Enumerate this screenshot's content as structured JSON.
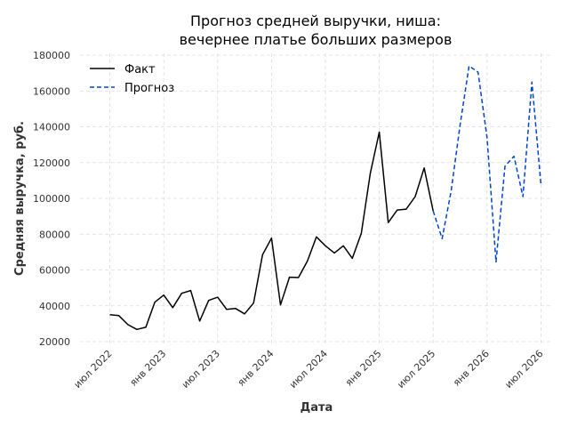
{
  "chart_data": {
    "type": "line",
    "title_line1": "Прогноз средней выручки, ниша:",
    "title_line2": "вечернее платье больших размеров",
    "xlabel": "Дата",
    "ylabel": "Средняя выручка, руб.",
    "ylim": [
      20000,
      180000
    ],
    "yticks": [
      20000,
      40000,
      60000,
      80000,
      100000,
      120000,
      140000,
      160000,
      180000
    ],
    "xticks": [
      {
        "date": "2022-07",
        "label": "июл 2022"
      },
      {
        "date": "2023-01",
        "label": "янв 2023"
      },
      {
        "date": "2023-07",
        "label": "июл 2023"
      },
      {
        "date": "2024-01",
        "label": "янв 2024"
      },
      {
        "date": "2024-07",
        "label": "июл 2024"
      },
      {
        "date": "2025-01",
        "label": "янв 2025"
      },
      {
        "date": "2025-07",
        "label": "июл 2025"
      },
      {
        "date": "2026-01",
        "label": "янв 2026"
      },
      {
        "date": "2026-07",
        "label": "июл 2026"
      }
    ],
    "grid": true,
    "legend_position": "top-left",
    "series": [
      {
        "name": "Факт",
        "color": "#000000",
        "style": "solid",
        "points": [
          [
            "2022-07",
            35000
          ],
          [
            "2022-08",
            34500
          ],
          [
            "2022-09",
            29500
          ],
          [
            "2022-10",
            26800
          ],
          [
            "2022-11",
            28000
          ],
          [
            "2022-12",
            42000
          ],
          [
            "2023-01",
            46000
          ],
          [
            "2023-02",
            39000
          ],
          [
            "2023-03",
            47000
          ],
          [
            "2023-04",
            48500
          ],
          [
            "2023-05",
            31500
          ],
          [
            "2023-06",
            43000
          ],
          [
            "2023-07",
            44800
          ],
          [
            "2023-08",
            38000
          ],
          [
            "2023-09",
            38500
          ],
          [
            "2023-10",
            35500
          ],
          [
            "2023-11",
            41500
          ],
          [
            "2023-12",
            68500
          ],
          [
            "2024-01",
            77800
          ],
          [
            "2024-02",
            40500
          ],
          [
            "2024-03",
            56000
          ],
          [
            "2024-04",
            55800
          ],
          [
            "2024-05",
            65000
          ],
          [
            "2024-06",
            78500
          ],
          [
            "2024-07",
            73500
          ],
          [
            "2024-08",
            69500
          ],
          [
            "2024-09",
            73500
          ],
          [
            "2024-10",
            66500
          ],
          [
            "2024-11",
            80500
          ],
          [
            "2024-12",
            114000
          ],
          [
            "2025-01",
            137000
          ],
          [
            "2025-02",
            86500
          ],
          [
            "2025-03",
            93500
          ],
          [
            "2025-04",
            94000
          ],
          [
            "2025-05",
            101000
          ],
          [
            "2025-06",
            117000
          ],
          [
            "2025-07",
            93000
          ]
        ]
      },
      {
        "name": "Прогноз",
        "color": "#0044cc",
        "style": "dashed",
        "points": [
          [
            "2025-07",
            93000
          ],
          [
            "2025-08",
            77500
          ],
          [
            "2025-09",
            104000
          ],
          [
            "2025-10",
            141000
          ],
          [
            "2025-11",
            174000
          ],
          [
            "2025-12",
            170500
          ],
          [
            "2026-01",
            134000
          ],
          [
            "2026-02",
            64500
          ],
          [
            "2026-03",
            118000
          ],
          [
            "2026-04",
            123500
          ],
          [
            "2026-05",
            101000
          ],
          [
            "2026-06",
            165000
          ],
          [
            "2026-07",
            108000
          ]
        ]
      }
    ]
  }
}
